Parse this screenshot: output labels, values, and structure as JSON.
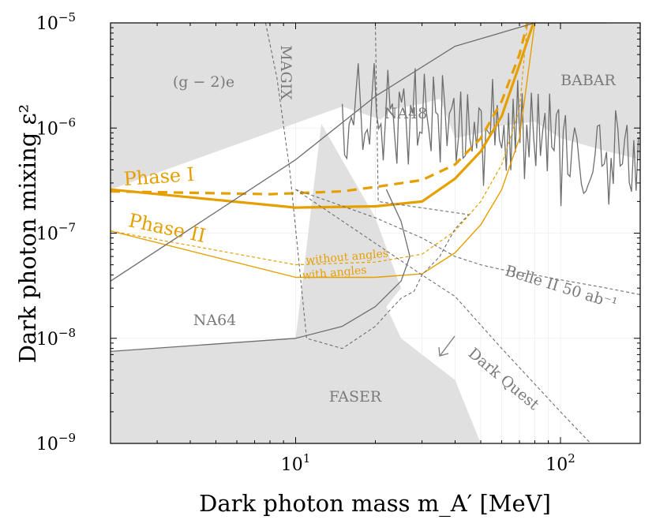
{
  "chart_data": {
    "type": "line",
    "title": "",
    "xlabel": "Dark photon mass m_A′ [MeV]",
    "ylabel": "Dark photon mixing ε²",
    "xscale": "log",
    "yscale": "log",
    "xlim": [
      2,
      200
    ],
    "ylim": [
      1e-09,
      1e-05
    ],
    "x_ticks": [
      {
        "base": "10",
        "exp": "1",
        "value": 10
      },
      {
        "base": "10",
        "exp": "2",
        "value": 100
      }
    ],
    "y_ticks": [
      {
        "base": "10",
        "exp": "−9",
        "value": 1e-09
      },
      {
        "base": "10",
        "exp": "−8",
        "value": 1e-08
      },
      {
        "base": "10",
        "exp": "−7",
        "value": 1e-07
      },
      {
        "base": "10",
        "exp": "−6",
        "value": 1e-06
      },
      {
        "base": "10",
        "exp": "−5",
        "value": 1e-05
      }
    ],
    "region_labels": {
      "g2e": "(g − 2)e",
      "magix": "MAGIX",
      "na48": "NA48",
      "babar": "BABAR",
      "na64": "NA64",
      "faser": "FASER",
      "belle": "Belle II 50 ab⁻¹",
      "darkquest": "Dark Quest"
    },
    "curve_labels": {
      "phase1": "Phase I",
      "phase2": "Phase II",
      "without": "without angles",
      "with": "with angles"
    },
    "colors": {
      "excluded": "#e0e0e0",
      "boundary": "#6e6e6e",
      "orange": "#e69f00"
    },
    "excluded_regions": [
      {
        "name": "BABAR / NA48 / (g-2)e upper region",
        "x": [
          2,
          15,
          21,
          23,
          30,
          35,
          40,
          50,
          60,
          80,
          100,
          150,
          200
        ],
        "y": [
          2.6e-07,
          1.6e-06,
          1.2e-06,
          1.5e-06,
          1.7e-06,
          1.9e-06,
          8e-07,
          9e-07,
          1.05e-06,
          1.15e-06,
          8e-07,
          6e-07,
          5e-07
        ]
      },
      {
        "name": "NA64 / FASER lower region",
        "x": [
          2,
          10,
          12.5,
          20,
          25,
          22,
          25,
          40,
          50
        ],
        "y": [
          7.5e-09,
          1e-08,
          1.1e-06,
          1.4e-07,
          3e-08,
          2e-08,
          1e-08,
          4e-09,
          1e-09
        ]
      }
    ],
    "series": [
      {
        "name": "Phase I (solid)",
        "x": [
          2,
          10,
          20,
          30,
          40,
          50,
          60,
          70,
          80
        ],
        "y": [
          2.6e-07,
          1.75e-07,
          1.8e-07,
          2e-07,
          3.3e-07,
          6e-07,
          1.3e-06,
          4e-06,
          1.1e-05
        ]
      },
      {
        "name": "Phase I (dashed)",
        "x": [
          2,
          8,
          15,
          20,
          30,
          40,
          50,
          60,
          70,
          75
        ],
        "y": [
          2.5e-07,
          2.35e-07,
          2.5e-07,
          2.75e-07,
          3.2e-07,
          4.5e-07,
          8e-07,
          1.8e-06,
          5e-06,
          1e-05
        ]
      },
      {
        "name": "Phase II with angles",
        "x": [
          2,
          10,
          20,
          30,
          40,
          50,
          60,
          70,
          80
        ],
        "y": [
          1.05e-07,
          3.8e-08,
          3.8e-08,
          4.1e-08,
          6.5e-08,
          1.2e-07,
          2.6e-07,
          8e-07,
          1e-05
        ]
      },
      {
        "name": "Phase II without angles",
        "x": [
          2,
          10,
          20,
          30,
          40,
          50,
          60,
          70,
          75
        ],
        "y": [
          1.05e-07,
          5e-08,
          5.3e-08,
          6.3e-08,
          1.05e-07,
          2e-07,
          4.5e-07,
          1.5e-06,
          1e-05
        ]
      },
      {
        "name": "NA64 (solid)",
        "x": [
          2,
          10,
          15,
          20,
          25,
          27,
          25,
          22
        ],
        "y": [
          7.5e-09,
          1e-08,
          1.3e-08,
          2e-08,
          3.5e-08,
          6e-08,
          1.3e-07,
          2.6e-07
        ]
      },
      {
        "name": "MAGIX (dashed)",
        "x": [
          7.7,
          8.5,
          9.5,
          11,
          15,
          20,
          22,
          25,
          28,
          30,
          35,
          40,
          45,
          20.5,
          20
        ],
        "y": [
          1e-05,
          3e-06,
          4e-07,
          1e-08,
          8e-09,
          1.3e-08,
          1.7e-08,
          2.4e-08,
          2.8e-08,
          4e-08,
          6e-08,
          1.1e-07,
          1.5e-07,
          2e-07,
          1e-05
        ]
      },
      {
        "name": "Belle II 50 ab^-1 (dashed)",
        "x": [
          10,
          20,
          30,
          40,
          50,
          60,
          80,
          100,
          150,
          200
        ],
        "y": [
          2.6e-07,
          1.4e-07,
          9e-08,
          6e-08,
          5e-08,
          4.5e-08,
          4e-08,
          3.6e-08,
          3e-08,
          2.6e-08
        ]
      },
      {
        "name": "Dark Quest (dashed)",
        "x": [
          10,
          20,
          30,
          40,
          60,
          100,
          130
        ],
        "y": [
          2.6e-07,
          8e-08,
          4e-08,
          2.5e-08,
          8e-09,
          2e-09,
          1e-09
        ]
      },
      {
        "name": "(g-2)e (solid)",
        "x": [
          2,
          10,
          20,
          40,
          80,
          150
        ],
        "y": [
          3.5e-08,
          5e-07,
          2e-06,
          6e-06,
          1e-05,
          1e-05
        ]
      }
    ]
  }
}
